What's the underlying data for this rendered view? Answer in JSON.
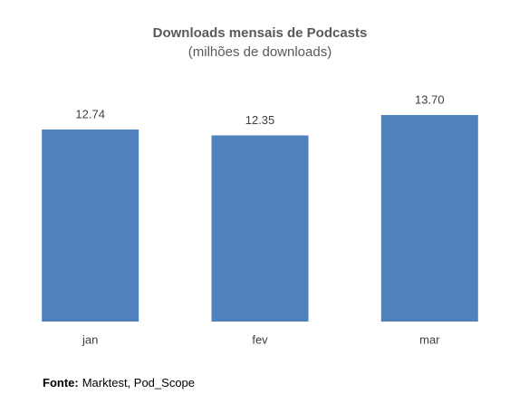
{
  "chart_data": {
    "type": "bar",
    "title": "Downloads mensais de Podcasts",
    "subtitle": "(milhões de downloads)",
    "categories": [
      "jan",
      "fev",
      "mar"
    ],
    "values": [
      12.74,
      12.35,
      13.7
    ],
    "value_labels": [
      "12.74",
      "12.35",
      "13.70"
    ],
    "color": "#4f81bd",
    "source": {
      "label": "Fonte:",
      "text": "Marktest, Pod_Scope"
    }
  }
}
